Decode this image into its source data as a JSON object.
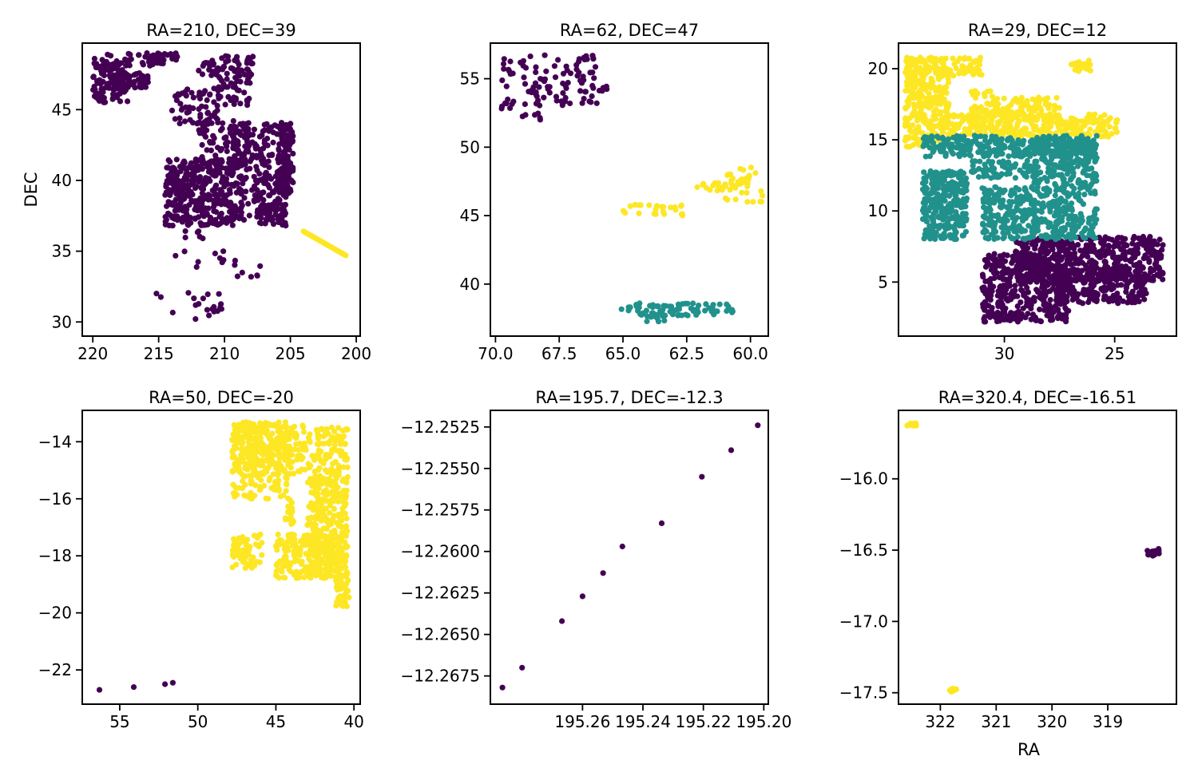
{
  "colors": {
    "purple": "#440154",
    "teal": "#21918c",
    "yellow": "#fde725"
  },
  "chart_data": [
    {
      "type": "scatter",
      "title": "RA=210, DEC=39",
      "xlabel": "",
      "ylabel": "DEC",
      "xlim": [
        220.8,
        199.7
      ],
      "ylim": [
        29.0,
        49.7
      ],
      "xticks": [
        220,
        215,
        210,
        205,
        200
      ],
      "xtick_labels": [
        "220",
        "215",
        "210",
        "205",
        "200"
      ],
      "yticks": [
        30,
        35,
        40,
        45
      ],
      "ytick_labels": [
        "30",
        "35",
        "40",
        "45"
      ],
      "groups": [
        {
          "color": "purple",
          "clusters": [
            {
              "x": [
                220,
                213.5
              ],
              "y": [
                48.1,
                49.0
              ],
              "n": 40
            },
            {
              "x": [
                220,
                217.3
              ],
              "y": [
                45.5,
                48.3
              ],
              "n": 120
            },
            {
              "x": [
                217.6,
                215.8
              ],
              "y": [
                46.5,
                47.6
              ],
              "n": 40
            },
            {
              "x": [
                215.9,
                213.5
              ],
              "y": [
                48.5,
                49.0
              ],
              "n": 20
            },
            {
              "x": [
                214.0,
                210.4
              ],
              "y": [
                44.0,
                46.5
              ],
              "n": 60
            },
            {
              "x": [
                212.0,
                207.8
              ],
              "y": [
                47.3,
                48.8
              ],
              "n": 60
            },
            {
              "x": [
                210.5,
                208.0
              ],
              "y": [
                45.3,
                47.5
              ],
              "n": 40
            },
            {
              "x": [
                209.5,
                205.2
              ],
              "y": [
                37.2,
                44.2
              ],
              "n": 250
            },
            {
              "x": [
                206.0,
                204.8
              ],
              "y": [
                39.0,
                44.1
              ],
              "n": 100
            },
            {
              "x": [
                214.5,
                209.3
              ],
              "y": [
                36.8,
                41.5
              ],
              "n": 350
            },
            {
              "x": [
                212.0,
                208.0
              ],
              "y": [
                41.0,
                44.2
              ],
              "n": 80
            },
            {
              "x": [
                207.5,
                205.3
              ],
              "y": [
                36.8,
                38.3
              ],
              "n": 40
            },
            {
              "x": [
                214.0,
                210.0
              ],
              "y": [
                33.5,
                36.5
              ],
              "n": 15
            },
            {
              "x": [
                215.3,
                210.2
              ],
              "y": [
                30.2,
                32.3
              ],
              "n": 20
            },
            {
              "x": [
                210.5,
                207.2
              ],
              "y": [
                33.0,
                34.7
              ],
              "n": 8
            }
          ]
        },
        {
          "color": "yellow",
          "clusters": [
            {
              "line": [
                [
                  204.0,
                  36.4
                ],
                [
                  200.8,
                  34.7
                ]
              ],
              "n": 25
            }
          ]
        }
      ]
    },
    {
      "type": "scatter",
      "title": "RA=62, DEC=47",
      "xlabel": "",
      "ylabel": "",
      "xlim": [
        70.2,
        59.3
      ],
      "ylim": [
        36.2,
        57.6
      ],
      "xticks": [
        70.0,
        67.5,
        65.0,
        62.5,
        60.0
      ],
      "xtick_labels": [
        "70.0",
        "67.5",
        "65.0",
        "62.5",
        "60.0"
      ],
      "yticks": [
        40,
        45,
        50,
        55
      ],
      "ytick_labels": [
        "40",
        "45",
        "50",
        "55"
      ],
      "groups": [
        {
          "color": "purple",
          "clusters": [
            {
              "x": [
                69.8,
                66.0
              ],
              "y": [
                53.0,
                56.8
              ],
              "n": 90
            },
            {
              "x": [
                66.5,
                64.7
              ],
              "y": [
                53.8,
                54.7
              ],
              "n": 8
            },
            {
              "x": [
                69.8,
                68.2
              ],
              "y": [
                52.0,
                53.3
              ],
              "n": 15
            }
          ]
        },
        {
          "color": "yellow",
          "clusters": [
            {
              "x": [
                65.0,
                62.6
              ],
              "y": [
                45.0,
                45.8
              ],
              "n": 25
            },
            {
              "x": [
                62.2,
                60.8
              ],
              "y": [
                46.8,
                47.4
              ],
              "n": 15
            },
            {
              "x": [
                61.0,
                59.5
              ],
              "y": [
                46.0,
                48.7
              ],
              "n": 40
            }
          ]
        },
        {
          "color": "teal",
          "clusters": [
            {
              "x": [
                65.2,
                60.6
              ],
              "y": [
                37.7,
                38.6
              ],
              "n": 70
            },
            {
              "x": [
                64.3,
                63.3
              ],
              "y": [
                37.2,
                37.8
              ],
              "n": 10
            }
          ]
        }
      ]
    },
    {
      "type": "scatter",
      "title": "RA=29, DEC=12",
      "xlabel": "",
      "ylabel": "",
      "xlim": [
        34.8,
        22.2
      ],
      "ylim": [
        1.2,
        21.8
      ],
      "xticks": [
        30,
        25
      ],
      "xtick_labels": [
        "30",
        "25"
      ],
      "yticks": [
        5,
        10,
        15,
        20
      ],
      "ytick_labels": [
        "5",
        "10",
        "15",
        "20"
      ],
      "groups": [
        {
          "color": "purple",
          "clusters": [
            {
              "x": [
                29.5,
                22.8
              ],
              "y": [
                5.0,
                8.2
              ],
              "n": 500
            },
            {
              "x": [
                31.0,
                27.0
              ],
              "y": [
                2.2,
                7.0
              ],
              "n": 400
            },
            {
              "x": [
                27.5,
                23.5
              ],
              "y": [
                3.5,
                6.0
              ],
              "n": 200
            }
          ]
        },
        {
          "color": "yellow",
          "clusters": [
            {
              "x": [
                34.5,
                32.5
              ],
              "y": [
                14.5,
                20.8
              ],
              "n": 300
            },
            {
              "x": [
                34.5,
                31.0
              ],
              "y": [
                19.5,
                20.8
              ],
              "n": 80
            },
            {
              "x": [
                31.5,
                30.5
              ],
              "y": [
                16.5,
                18.5
              ],
              "n": 40
            },
            {
              "x": [
                32.5,
                24.8
              ],
              "y": [
                15.2,
                16.8
              ],
              "n": 300
            },
            {
              "x": [
                30.5,
                27.5
              ],
              "y": [
                16.5,
                18.0
              ],
              "n": 100
            },
            {
              "x": [
                27.0,
                26.0
              ],
              "y": [
                19.8,
                20.6
              ],
              "n": 30
            }
          ]
        },
        {
          "color": "teal",
          "clusters": [
            {
              "x": [
                33.7,
                25.8
              ],
              "y": [
                13.8,
                15.3
              ],
              "n": 300
            },
            {
              "x": [
                33.7,
                31.7
              ],
              "y": [
                8.0,
                12.8
              ],
              "n": 300
            },
            {
              "x": [
                31.0,
                28.7
              ],
              "y": [
                8.0,
                11.7
              ],
              "n": 200
            },
            {
              "x": [
                28.7,
                25.8
              ],
              "y": [
                8.0,
                15.0
              ],
              "n": 400
            },
            {
              "x": [
                31.5,
                28.5
              ],
              "y": [
                12.3,
                13.6
              ],
              "n": 80
            }
          ]
        }
      ]
    },
    {
      "type": "scatter",
      "title": "RA=50, DEC=-20",
      "xlabel": "",
      "ylabel": "",
      "xlim": [
        57.4,
        39.6
      ],
      "ylim": [
        -23.2,
        -12.9
      ],
      "xticks": [
        55,
        50,
        45,
        40
      ],
      "xtick_labels": [
        "55",
        "50",
        "45",
        "40"
      ],
      "yticks": [
        -22,
        -20,
        -18,
        -16,
        -14
      ],
      "ytick_labels": [
        "−22",
        "−20",
        "−18",
        "−16",
        "−14"
      ],
      "groups": [
        {
          "color": "purple",
          "clusters": [
            {
              "points": [
                [
                  56.3,
                  -22.7
                ],
                [
                  54.1,
                  -22.6
                ],
                [
                  52.1,
                  -22.5
                ],
                [
                  51.6,
                  -22.45
                ]
              ]
            }
          ]
        },
        {
          "color": "yellow",
          "clusters": [
            {
              "x": [
                47.8,
                40.4
              ],
              "y": [
                -15.2,
                -13.3
              ],
              "n": 300
            },
            {
              "x": [
                47.8,
                44.2
              ],
              "y": [
                -16.0,
                -13.3
              ],
              "n": 200
            },
            {
              "x": [
                43.0,
                40.4
              ],
              "y": [
                -18.7,
                -15.2
              ],
              "n": 300
            },
            {
              "x": [
                47.8,
                45.8
              ],
              "y": [
                -18.5,
                -17.2
              ],
              "n": 60
            },
            {
              "x": [
                45.0,
                40.4
              ],
              "y": [
                -18.8,
                -17.2
              ],
              "n": 200
            },
            {
              "x": [
                41.2,
                40.3
              ],
              "y": [
                -19.8,
                -18.8
              ],
              "n": 40
            },
            {
              "x": [
                44.4,
                43.8
              ],
              "y": [
                -16.9,
                -16.0
              ],
              "n": 15
            }
          ]
        }
      ]
    },
    {
      "type": "scatter",
      "title": "RA=195.7, DEC=-12.3",
      "xlabel": "",
      "ylabel": "",
      "xlim": [
        195.2905,
        195.1985
      ],
      "ylim": [
        -12.2692,
        -12.2515
      ],
      "xticks": [
        195.26,
        195.24,
        195.22,
        195.2
      ],
      "xtick_labels": [
        "195.26",
        "195.24",
        "195.22",
        "195.20"
      ],
      "yticks": [
        -12.2675,
        -12.265,
        -12.2625,
        -12.26,
        -12.2575,
        -12.255,
        -12.2525
      ],
      "ytick_labels": [
        "−12.2675",
        "−12.2650",
        "−12.2625",
        "−12.2600",
        "−12.2575",
        "−12.2550",
        "−12.2525"
      ],
      "groups": [
        {
          "color": "purple",
          "clusters": [
            {
              "points": [
                [
                  195.2865,
                  -12.2682
                ],
                [
                  195.28,
                  -12.267
                ],
                [
                  195.2668,
                  -12.2642
                ],
                [
                  195.26,
                  -12.2627
                ],
                [
                  195.2532,
                  -12.2613
                ],
                [
                  195.2468,
                  -12.2597
                ],
                [
                  195.2338,
                  -12.2583
                ],
                [
                  195.2205,
                  -12.2555
                ],
                [
                  195.2108,
                  -12.2539
                ],
                [
                  195.202,
                  -12.2524
                ]
              ]
            }
          ]
        }
      ]
    },
    {
      "type": "scatter",
      "title": "RA=320.4, DEC=-16.51",
      "xlabel": "RA",
      "ylabel": "",
      "xlim": [
        322.75,
        317.77
      ],
      "ylim": [
        -17.58,
        -15.52
      ],
      "xticks": [
        322,
        321,
        320,
        319
      ],
      "xtick_labels": [
        "322",
        "321",
        "320",
        "319"
      ],
      "yticks": [
        -17.5,
        -17.0,
        -16.5,
        -16.0
      ],
      "ytick_labels": [
        "−17.5",
        "−17.0",
        "−16.5",
        "−16.0"
      ],
      "groups": [
        {
          "color": "yellow",
          "clusters": [
            {
              "x": [
                322.6,
                322.4
              ],
              "y": [
                -15.63,
                -15.61
              ],
              "n": 15
            },
            {
              "x": [
                321.85,
                321.7
              ],
              "y": [
                -17.5,
                -17.47
              ],
              "n": 10
            }
          ]
        },
        {
          "color": "purple",
          "clusters": [
            {
              "x": [
                318.3,
                318.08
              ],
              "y": [
                -16.54,
                -16.49
              ],
              "n": 15
            }
          ]
        }
      ]
    }
  ]
}
